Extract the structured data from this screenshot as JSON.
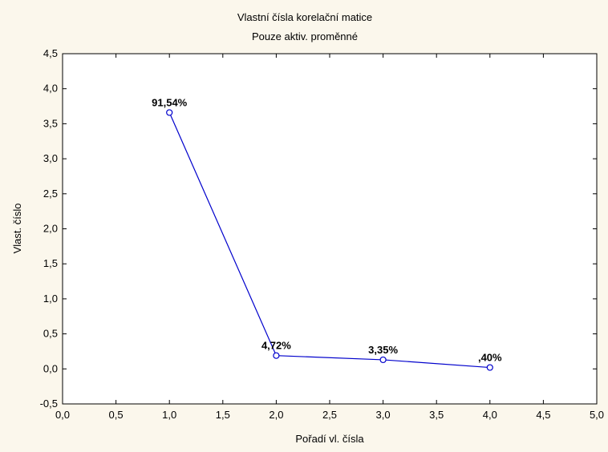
{
  "chart_data": {
    "type": "line",
    "title": "Vlastní čísla  korelační matice",
    "subtitle": "Pouze aktiv. proměnné",
    "xlabel": "Pořadí vl. čísla",
    "ylabel": "Vlast. číslo",
    "xlim": [
      0,
      5
    ],
    "ylim": [
      -0.5,
      4.5
    ],
    "x_ticks": [
      "0,0",
      "0,5",
      "1,0",
      "1,5",
      "2,0",
      "2,5",
      "3,0",
      "3,5",
      "4,0",
      "4,5",
      "5,0"
    ],
    "y_ticks": [
      "-0,5",
      "0,0",
      "0,5",
      "1,0",
      "1,5",
      "2,0",
      "2,5",
      "3,0",
      "3,5",
      "4,0",
      "4,5"
    ],
    "grid": false,
    "series": [
      {
        "x": [
          1,
          2,
          3,
          4
        ],
        "values": [
          3.66,
          0.19,
          0.13,
          0.02
        ],
        "data_labels": [
          "91,54%",
          "4,72%",
          "3,35%",
          ",40%"
        ],
        "color": "#0000cc"
      }
    ],
    "background_color": "#fbf7ec",
    "plot_background_color": "#ffffff"
  }
}
